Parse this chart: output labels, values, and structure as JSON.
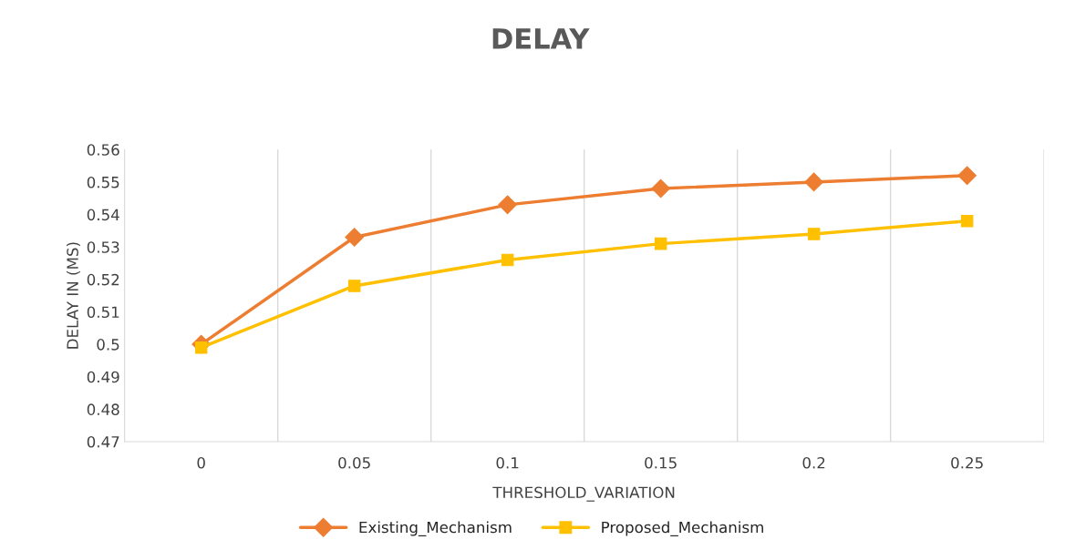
{
  "chart_data": {
    "type": "line",
    "title": "DELAY",
    "xlabel": "THRESHOLD_VARIATION",
    "ylabel": "DELAY IN (MS)",
    "categories": [
      "0",
      "0.05",
      "0.1",
      "0.15",
      "0.2",
      "0.25"
    ],
    "series": [
      {
        "name": "Existing_Mechanism",
        "color": "#ed7d31",
        "marker": "diamond",
        "values": [
          0.5,
          0.533,
          0.543,
          0.548,
          0.55,
          0.552
        ]
      },
      {
        "name": "Proposed_Mechanism",
        "color": "#ffc000",
        "marker": "square",
        "values": [
          0.499,
          0.518,
          0.526,
          0.531,
          0.534,
          0.538
        ]
      }
    ],
    "ylim": [
      0.47,
      0.56
    ],
    "yticks": [
      0.47,
      0.48,
      0.49,
      0.5,
      0.51,
      0.52,
      0.53,
      0.54,
      0.55,
      0.56
    ],
    "grid": "x",
    "legend": "bottom",
    "line_style": "solid"
  }
}
